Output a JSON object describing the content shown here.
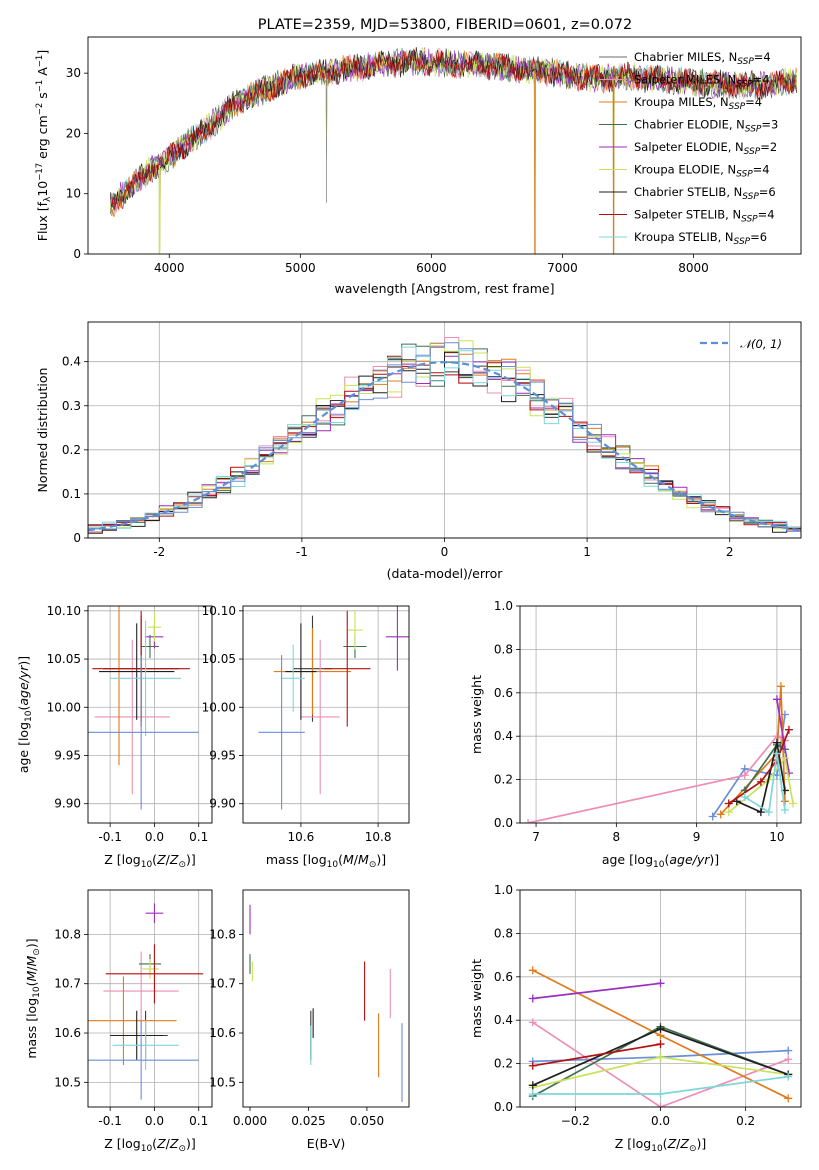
{
  "figure": {
    "title": "PLATE=2359, MJD=53800, FIBERID=0601, z=0.072"
  },
  "colors": [
    "#6b6b6b",
    "#ee8eb5",
    "#e07b1b",
    "#3f6f4e",
    "#9b2fbe",
    "#c8e35a",
    "#1f1f1f",
    "#b30f0f",
    "#7dd6d9"
  ],
  "legend_entries": [
    {
      "label": "Chabrier MILES, N",
      "sub": "SSP",
      "suffix": "=4"
    },
    {
      "label": "Salpeter MILES, N",
      "sub": "SSP",
      "suffix": "=4"
    },
    {
      "label": "Kroupa MILES, N",
      "sub": "SSP",
      "suffix": "=4"
    },
    {
      "label": "Chabrier ELODIE, N",
      "sub": "SSP",
      "suffix": "=3"
    },
    {
      "label": "Salpeter ELODIE, N",
      "sub": "SSP",
      "suffix": "=2"
    },
    {
      "label": "Kroupa ELODIE, N",
      "sub": "SSP",
      "suffix": "=4"
    },
    {
      "label": "Chabrier STELIB, N",
      "sub": "SSP",
      "suffix": "=6"
    },
    {
      "label": "Salpeter STELIB, N",
      "sub": "SSP",
      "suffix": "=4"
    },
    {
      "label": "Kroupa STELIB, N",
      "sub": "SSP",
      "suffix": "=6"
    }
  ],
  "chart_data": [
    {
      "id": "spectrum",
      "type": "line",
      "title": "PLATE=2359, MJD=53800, FIBERID=0601, z=0.072",
      "xlabel": "wavelength [Angstrom, rest frame]",
      "ylabel": "Flux [fλ10⁻¹⁷ erg cm⁻² s⁻¹ A⁻¹]",
      "xlim": [
        3380,
        8820
      ],
      "ylim": [
        0,
        36
      ],
      "xticks": [
        4000,
        5000,
        6000,
        7000,
        8000
      ],
      "yticks": [
        0,
        10,
        20,
        30
      ],
      "continuum_anchors": {
        "x": [
          3550,
          3700,
          3850,
          3950,
          4050,
          4300,
          4500,
          4700,
          5000,
          5300,
          5600,
          5900,
          6200,
          6500,
          6800,
          7100,
          7300,
          7500,
          7700,
          8000,
          8300,
          8600,
          8790
        ],
        "y": [
          8,
          11,
          14,
          15,
          17,
          21,
          25,
          27,
          29.5,
          30.5,
          31.5,
          32,
          31.5,
          31,
          30.5,
          29.5,
          29,
          29.5,
          29,
          28.5,
          28,
          28,
          29
        ]
      },
      "features": [
        {
          "x": 5200,
          "depth": -13,
          "note": "spike"
        },
        {
          "x": 3930,
          "depth": -15
        },
        {
          "x": 6790,
          "depth": -30
        },
        {
          "x": 7390,
          "depth": -29
        }
      ],
      "legend": "top-right"
    },
    {
      "id": "residual-histogram",
      "type": "step",
      "xlabel": "(data-model)/error",
      "ylabel": "Normed distribution",
      "xlim": [
        -2.5,
        2.5
      ],
      "ylim": [
        0,
        0.49
      ],
      "xticks": [
        -2,
        -1,
        0,
        1,
        2
      ],
      "yticks": [
        0,
        0.1,
        0.2,
        0.3,
        0.4
      ],
      "bin_width": 0.1,
      "reference": {
        "name": "𝒩(0, 1)",
        "mean": 0,
        "sigma": 1
      },
      "grid": true,
      "legend": "top-right"
    },
    {
      "id": "age-vs-Z",
      "type": "errorbar",
      "xlabel": "Z [log10(Z/Z⊙)]",
      "ylabel": "age [log10(age/yr)]",
      "xlim": [
        -0.15,
        0.13
      ],
      "ylim": [
        9.88,
        10.105
      ],
      "xticks": [
        -0.1,
        0.0,
        0.1
      ],
      "yticks": [
        9.9,
        9.95,
        10.0,
        10.05,
        10.1
      ],
      "grid": true,
      "points": [
        {
          "series": 0,
          "x": -0.03,
          "y": 10.04,
          "xerr": 0.085,
          "yerr": 0.055
        },
        {
          "series": 1,
          "x": -0.05,
          "y": 9.99,
          "xerr": 0.085,
          "yerr": 0.08
        },
        {
          "series": 2,
          "x": -0.08,
          "y": 10.04,
          "xerr": 0.025,
          "yerr": 0.1
        },
        {
          "series": 3,
          "x": -0.01,
          "y": 10.063,
          "xerr": 0.02,
          "yerr": 0.012
        },
        {
          "series": 4,
          "x": 0.0,
          "y": 10.073,
          "xerr": 0.02,
          "yerr": 0.012
        },
        {
          "series": 5,
          "x": 0.0,
          "y": 10.083,
          "xerr": 0.015,
          "yerr": 0.015
        },
        {
          "series": 6,
          "x": -0.04,
          "y": 10.037,
          "xerr": 0.085,
          "yerr": 0.05
        },
        {
          "series": 7,
          "x": -0.03,
          "y": 10.04,
          "xerr": 0.11,
          "yerr": 0.06
        },
        {
          "series": 8,
          "x": -0.02,
          "y": 10.03,
          "xerr": 0.08,
          "yerr": 0.06
        },
        {
          "series": 9,
          "x": -0.03,
          "y": 9.974,
          "xerr": 0.13,
          "yerr": 0.08
        }
      ]
    },
    {
      "id": "age-vs-mass",
      "type": "errorbar",
      "xlabel": "mass [log10(M/M⊙)]",
      "xlim": [
        10.45,
        10.88
      ],
      "ylim": [
        9.88,
        10.105
      ],
      "xticks": [
        10.6,
        10.8
      ],
      "yticks": [
        9.9,
        9.95,
        10.0,
        10.05,
        10.1
      ],
      "grid": true,
      "points": [
        {
          "series": 0,
          "x": 10.63,
          "y": 10.04,
          "xerr": 0.05,
          "yerr": 0.055
        },
        {
          "series": 1,
          "x": 10.65,
          "y": 9.99,
          "xerr": 0.05,
          "yerr": 0.08
        },
        {
          "series": 2,
          "x": 10.63,
          "y": 10.037,
          "xerr": 0.1,
          "yerr": 0.045
        },
        {
          "series": 3,
          "x": 10.74,
          "y": 10.063,
          "xerr": 0.03,
          "yerr": 0.012
        },
        {
          "series": 4,
          "x": 10.85,
          "y": 10.073,
          "xerr": 0.03,
          "yerr": 0.035
        },
        {
          "series": 5,
          "x": 10.74,
          "y": 10.08,
          "xerr": 0.02,
          "yerr": 0.02
        },
        {
          "series": 6,
          "x": 10.6,
          "y": 10.037,
          "xerr": 0.04,
          "yerr": 0.05
        },
        {
          "series": 7,
          "x": 10.72,
          "y": 10.04,
          "xerr": 0.06,
          "yerr": 0.06
        },
        {
          "series": 8,
          "x": 10.58,
          "y": 10.03,
          "xerr": 0.03,
          "yerr": 0.035
        },
        {
          "series": 9,
          "x": 10.55,
          "y": 9.974,
          "xerr": 0.06,
          "yerr": 0.08
        }
      ]
    },
    {
      "id": "weight-vs-age",
      "type": "line",
      "xlabel": "age [log10(age/yr)]",
      "ylabel": "mass weight",
      "xlim": [
        6.8,
        10.3
      ],
      "ylim": [
        0,
        1.0
      ],
      "xticks": [
        7,
        8,
        9,
        10
      ],
      "yticks": [
        0.0,
        0.2,
        0.4,
        0.6,
        0.8,
        1.0
      ],
      "grid": true,
      "series": [
        {
          "color": 0,
          "x": [
            9.2,
            9.6,
            10.0,
            10.1
          ],
          "y": [
            0.03,
            0.25,
            0.22,
            0.5
          ]
        },
        {
          "color": 1,
          "x": [
            6.9,
            9.6,
            10.0,
            10.1
          ],
          "y": [
            0.0,
            0.22,
            0.4,
            0.38
          ]
        },
        {
          "color": 2,
          "x": [
            9.3,
            10.0,
            10.05,
            10.1
          ],
          "y": [
            0.04,
            0.32,
            0.63,
            0.1
          ]
        },
        {
          "color": 3,
          "x": [
            9.6,
            10.0,
            10.1
          ],
          "y": [
            0.15,
            0.36,
            0.34
          ]
        },
        {
          "color": 4,
          "x": [
            10.0,
            10.15
          ],
          "y": [
            0.57,
            0.23
          ]
        },
        {
          "color": 5,
          "x": [
            9.4,
            9.9,
            10.1,
            10.2
          ],
          "y": [
            0.05,
            0.2,
            0.3,
            0.09
          ]
        },
        {
          "color": 6,
          "x": [
            9.5,
            9.8,
            10.0,
            10.1
          ],
          "y": [
            0.1,
            0.05,
            0.37,
            0.15
          ]
        },
        {
          "color": 7,
          "x": [
            9.4,
            9.8,
            10.0,
            10.15
          ],
          "y": [
            0.09,
            0.19,
            0.29,
            0.43
          ]
        },
        {
          "color": 8,
          "x": [
            9.6,
            9.9,
            10.0,
            10.1
          ],
          "y": [
            0.12,
            0.05,
            0.32,
            0.06
          ]
        }
      ]
    },
    {
      "id": "mass-vs-Z",
      "type": "errorbar",
      "xlabel": "Z [log10(Z/Z⊙)]",
      "ylabel": "mass [log10(M/M⊙)]",
      "xlim": [
        -0.15,
        0.13
      ],
      "ylim": [
        10.45,
        10.89
      ],
      "xticks": [
        -0.1,
        0.0,
        0.1
      ],
      "yticks": [
        10.5,
        10.6,
        10.7,
        10.8
      ],
      "grid": true,
      "points": [
        {
          "series": 0,
          "x": -0.02,
          "y": 10.595,
          "xerr": 0.05,
          "yerr": 0.05
        },
        {
          "series": 1,
          "x": -0.03,
          "y": 10.685,
          "xerr": 0.085,
          "yerr": 0.08
        },
        {
          "series": 2,
          "x": -0.07,
          "y": 10.625,
          "xerr": 0.12,
          "yerr": 0.09
        },
        {
          "series": 3,
          "x": -0.01,
          "y": 10.74,
          "xerr": 0.025,
          "yerr": 0.02
        },
        {
          "series": 4,
          "x": 0.0,
          "y": 10.843,
          "xerr": 0.02,
          "yerr": 0.02
        },
        {
          "series": 5,
          "x": -0.01,
          "y": 10.73,
          "xerr": 0.02,
          "yerr": 0.02
        },
        {
          "series": 6,
          "x": -0.04,
          "y": 10.595,
          "xerr": 0.06,
          "yerr": 0.05
        },
        {
          "series": 7,
          "x": 0.0,
          "y": 10.72,
          "xerr": 0.11,
          "yerr": 0.06
        },
        {
          "series": 8,
          "x": -0.02,
          "y": 10.575,
          "xerr": 0.075,
          "yerr": 0.05
        },
        {
          "series": 9,
          "x": -0.03,
          "y": 10.545,
          "xerr": 0.13,
          "yerr": 0.08
        }
      ]
    },
    {
      "id": "mass-vs-EBV",
      "type": "errorbar",
      "xlabel": "E(B-V)",
      "xlim": [
        -0.003,
        0.068
      ],
      "ylim": [
        10.45,
        10.89
      ],
      "xticks": [
        0.0,
        0.025,
        0.05
      ],
      "yticks": [
        10.5,
        10.6,
        10.7,
        10.8
      ],
      "grid": false,
      "points": [
        {
          "series": 0,
          "x": 0.026,
          "y": 10.595,
          "yerr": 0.05
        },
        {
          "series": 1,
          "x": 0.06,
          "y": 10.68,
          "yerr": 0.05
        },
        {
          "series": 2,
          "x": 0.055,
          "y": 10.575,
          "yerr": 0.065
        },
        {
          "series": 3,
          "x": 0.0,
          "y": 10.74,
          "yerr": 0.02
        },
        {
          "series": 4,
          "x": 0.0,
          "y": 10.83,
          "yerr": 0.03
        },
        {
          "series": 5,
          "x": 0.001,
          "y": 10.725,
          "yerr": 0.02
        },
        {
          "series": 6,
          "x": 0.027,
          "y": 10.62,
          "yerr": 0.03
        },
        {
          "series": 7,
          "x": 0.049,
          "y": 10.685,
          "yerr": 0.06
        },
        {
          "series": 8,
          "x": 0.026,
          "y": 10.575,
          "yerr": 0.04
        },
        {
          "series": 9,
          "x": 0.065,
          "y": 10.54,
          "yerr": 0.08
        }
      ]
    },
    {
      "id": "weight-vs-Z",
      "type": "line",
      "xlabel": "Z [log10(Z/Z⊙)]",
      "ylabel": "mass weight",
      "xlim": [
        -0.33,
        0.33
      ],
      "ylim": [
        0,
        1.0
      ],
      "xticks": [
        -0.2,
        0.0,
        0.2
      ],
      "yticks": [
        0.0,
        0.2,
        0.4,
        0.6,
        0.8,
        1.0
      ],
      "grid": true,
      "series": [
        {
          "color": 0,
          "x": [
            -0.3,
            0.0,
            0.3
          ],
          "y": [
            0.21,
            0.23,
            0.26
          ]
        },
        {
          "color": 1,
          "x": [
            -0.3,
            0.0,
            0.3
          ],
          "y": [
            0.39,
            0.0,
            0.22
          ]
        },
        {
          "color": 2,
          "x": [
            -0.3,
            0.0,
            0.3
          ],
          "y": [
            0.63,
            0.33,
            0.04
          ]
        },
        {
          "color": 3,
          "x": [
            -0.3,
            0.0,
            0.3
          ],
          "y": [
            0.05,
            0.37,
            0.15
          ]
        },
        {
          "color": 4,
          "x": [
            -0.3,
            0.0
          ],
          "y": [
            0.5,
            0.57
          ]
        },
        {
          "color": 5,
          "x": [
            -0.3,
            0.0,
            0.3
          ],
          "y": [
            0.09,
            0.23,
            0.15
          ]
        },
        {
          "color": 6,
          "x": [
            -0.3,
            0.0,
            0.3
          ],
          "y": [
            0.1,
            0.36,
            0.15
          ]
        },
        {
          "color": 7,
          "x": [
            -0.3,
            0.0
          ],
          "y": [
            0.19,
            0.29
          ]
        },
        {
          "color": 8,
          "x": [
            -0.3,
            0.0,
            0.3
          ],
          "y": [
            0.06,
            0.06,
            0.14
          ]
        }
      ]
    }
  ]
}
